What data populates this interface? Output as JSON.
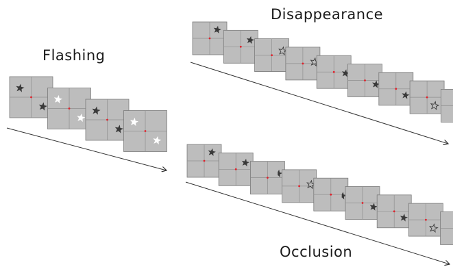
{
  "labels": {
    "flashing": "Flashing",
    "disappearance": "Disappearance",
    "occlusion": "Occlusion"
  },
  "colors": {
    "frame_fill": "#bdbdbd",
    "frame_stroke": "#7a7a7a",
    "divider": "#8f8f8f",
    "fixation": "#e0202a",
    "star_dark": "#3a3a3a",
    "star_white": "#ffffff",
    "arrow": "#333333"
  },
  "sequences": [
    {
      "id": "flashing",
      "frames": [
        {
          "stars": [
            {
              "q": "tl",
              "style": "dark"
            },
            {
              "q": "br",
              "style": "dark"
            }
          ]
        },
        {
          "stars": [
            {
              "q": "tl",
              "style": "white"
            },
            {
              "q": "br",
              "style": "white"
            }
          ]
        },
        {
          "stars": [
            {
              "q": "tl",
              "style": "dark"
            },
            {
              "q": "br",
              "style": "dark"
            }
          ]
        },
        {
          "stars": [
            {
              "q": "tl",
              "style": "white"
            },
            {
              "q": "br",
              "style": "white"
            }
          ]
        }
      ]
    },
    {
      "id": "disappearance",
      "frames": [
        {
          "stars": [
            {
              "pos": 0.0,
              "style": "dark"
            }
          ]
        },
        {
          "stars": [
            {
              "pos": 0.45,
              "style": "dark"
            }
          ]
        },
        {
          "stars": [
            {
              "pos": 0.9,
              "style": "outline"
            }
          ]
        },
        {
          "stars": [
            {
              "pos": 1.35,
              "style": "outline"
            }
          ]
        },
        {
          "stars": [
            {
              "pos": 1.8,
              "style": "dark"
            }
          ]
        },
        {
          "stars": [
            {
              "pos": 2.25,
              "style": "dark"
            }
          ]
        },
        {
          "stars": [
            {
              "pos": 2.7,
              "style": "dark"
            }
          ]
        },
        {
          "stars": [
            {
              "pos": 3.15,
              "style": "outline"
            }
          ]
        },
        {
          "stars": [
            {
              "pos": 3.6,
              "style": "dark"
            }
          ]
        }
      ]
    },
    {
      "id": "occlusion",
      "frames": [
        {
          "stars": [
            {
              "pos": 0.0,
              "style": "dark"
            }
          ]
        },
        {
          "stars": [
            {
              "pos": 0.45,
              "style": "dark"
            }
          ]
        },
        {
          "stars": [
            {
              "pos": 0.9,
              "style": "half"
            }
          ]
        },
        {
          "stars": [
            {
              "pos": 1.35,
              "style": "outline"
            }
          ]
        },
        {
          "stars": [
            {
              "pos": 1.8,
              "style": "half"
            }
          ]
        },
        {
          "stars": [
            {
              "pos": 2.25,
              "style": "dark"
            }
          ]
        },
        {
          "stars": [
            {
              "pos": 2.7,
              "style": "dark"
            }
          ]
        },
        {
          "stars": [
            {
              "pos": 3.15,
              "style": "outline"
            }
          ]
        },
        {
          "stars": [
            {
              "pos": 3.6,
              "style": "half"
            }
          ]
        }
      ]
    }
  ]
}
